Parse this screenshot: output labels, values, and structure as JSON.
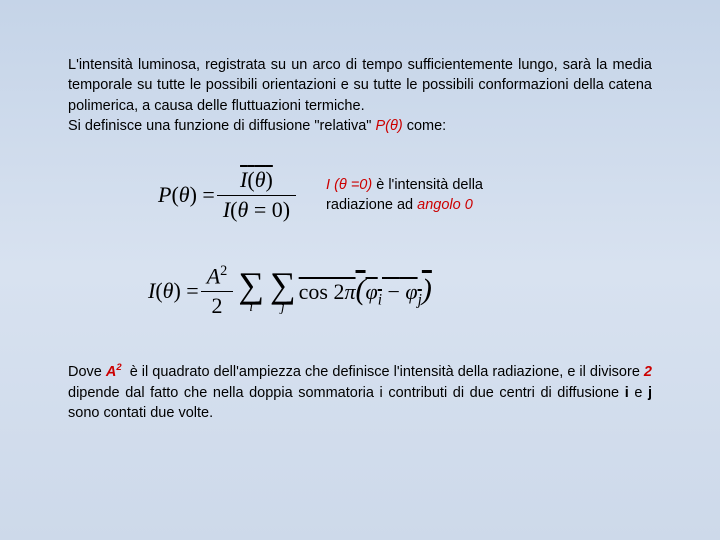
{
  "para1_a": "L'intensità luminosa, registrata su un arco di tempo sufficientemente lungo, sarà la media temporale su tutte le possibili orientazioni e su tutte le possibili conformazioni della catena polimerica, a causa delle fluttuazioni termiche.",
  "para1_b": "Si definisce una funzione di diffusione \"relativa\" ",
  "para1_c": "P(θ)",
  "para1_d": " come:",
  "eq1": {
    "lhs": "P(θ) = ",
    "num": "I(θ)",
    "den": "I(θ = 0)"
  },
  "note1_a": "I (θ =0)",
  "note1_b": " è l'intensità della",
  "note1_c": "radiazione ad ",
  "note1_d": "angolo  0",
  "eq2": {
    "lhs": "I(θ) = ",
    "num": "A",
    "den": "2",
    "sum1_sub": "i",
    "sum2_sub": "j",
    "cos": "cos 2π",
    "phi_i": "φ",
    "phi_j": "φ"
  },
  "para2_a": "Dove ",
  "para2_b": "A",
  "para2_c": " è il quadrato dell'ampiezza che definisce l'intensità della radiazione, e il divisore ",
  "para2_d": "2",
  "para2_e": " dipende dal fatto che nella doppia sommatoria i contributi di due centri di diffusione ",
  "para2_f": "i",
  "para2_g": " e ",
  "para2_h": "j",
  "para2_i": " sono contati due volte.",
  "colors": {
    "accent": "#cc0000",
    "text": "#000000",
    "bg_top": "#c5d4e8",
    "bg_bot": "#cdd9ea"
  }
}
